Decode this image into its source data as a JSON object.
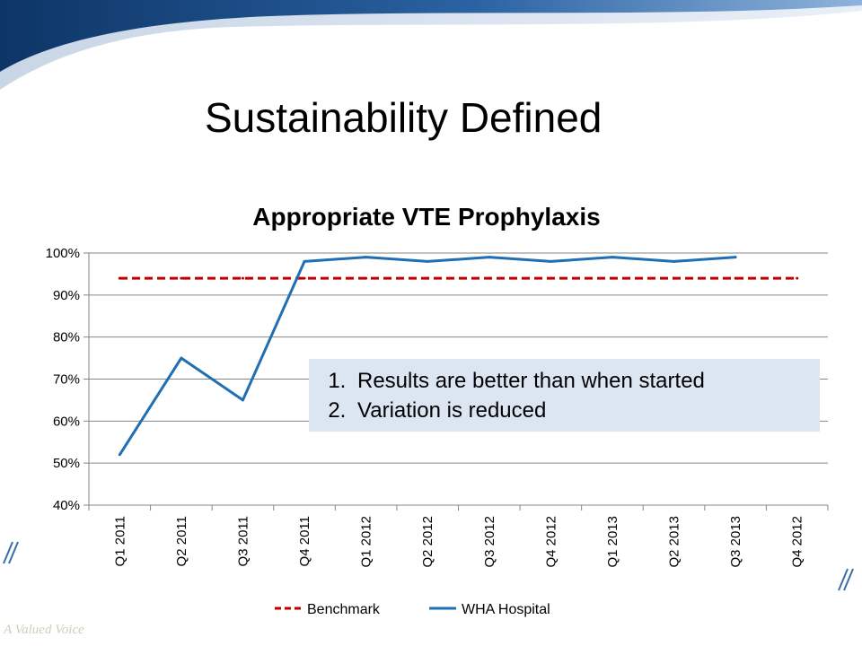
{
  "slide": {
    "title": "Sustainability Defined",
    "footer_text": "A Valued Voice"
  },
  "callout": {
    "items": [
      "Results are better than when started",
      "Variation is reduced"
    ]
  },
  "colors": {
    "benchmark": "#c00000",
    "hospital": "#1f6fb2",
    "callout_bg": "#dce6f2",
    "banner": "#1e4f86"
  },
  "chart_data": {
    "type": "line",
    "title": "Appropriate VTE Prophylaxis",
    "xlabel": "",
    "ylabel": "",
    "categories": [
      "Q1 2011",
      "Q2 2011",
      "Q3 2011",
      "Q4 2011",
      "Q1 2012",
      "Q2 2012",
      "Q3 2012",
      "Q4 2012",
      "Q1 2013",
      "Q2 2013",
      "Q3 2013",
      "Q4 2012"
    ],
    "ylim": [
      40,
      100
    ],
    "yticks": [
      "40%",
      "50%",
      "60%",
      "70%",
      "80%",
      "90%",
      "100%"
    ],
    "grid": true,
    "legend_position": "bottom",
    "series": [
      {
        "name": "Benchmark",
        "style": "dashed",
        "values": [
          94,
          94,
          94,
          94,
          94,
          94,
          94,
          94,
          94,
          94,
          94,
          94
        ]
      },
      {
        "name": "WHA Hospital",
        "style": "solid",
        "values": [
          52,
          75,
          65,
          98,
          99,
          98,
          99,
          98,
          99,
          98,
          99,
          null
        ]
      }
    ]
  }
}
